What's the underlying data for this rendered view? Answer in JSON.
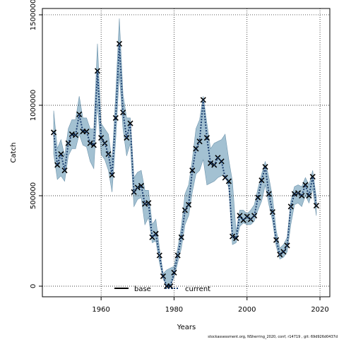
{
  "chart_data": {
    "type": "line",
    "x_label": "Years",
    "y_label": "Catch",
    "footer": "stockassessment.org, NSherring_2020, conf, r14719 , git: 69d926d0437d",
    "xlim": [
      1943.9,
      2022.7
    ],
    "ylim": [
      -58600,
      1535000
    ],
    "xticks": [
      1960,
      1980,
      2000,
      2020
    ],
    "yticks": [
      0,
      500000,
      1000000,
      1500000
    ],
    "grid": true,
    "x": [
      1947,
      1948,
      1949,
      1950,
      1951,
      1952,
      1953,
      1954,
      1955,
      1956,
      1957,
      1958,
      1959,
      1960,
      1961,
      1962,
      1963,
      1964,
      1965,
      1966,
      1967,
      1968,
      1969,
      1970,
      1971,
      1972,
      1973,
      1974,
      1975,
      1976,
      1977,
      1978,
      1979,
      1980,
      1981,
      1982,
      1983,
      1984,
      1985,
      1986,
      1987,
      1988,
      1989,
      1990,
      1991,
      1992,
      1993,
      1994,
      1995,
      1996,
      1997,
      1998,
      1999,
      2000,
      2001,
      2002,
      2003,
      2004,
      2005,
      2006,
      2007,
      2008,
      2009,
      2010,
      2011,
      2012,
      2013,
      2014,
      2015,
      2016,
      2017,
      2018,
      2019
    ],
    "band": {
      "color": "#a3c1d2",
      "upper": [
        970000,
        760000,
        810000,
        720000,
        870000,
        920000,
        920000,
        1050000,
        930000,
        930000,
        870000,
        870000,
        1340000,
        900000,
        870000,
        840000,
        690000,
        1060000,
        1480000,
        1060000,
        930000,
        930000,
        600000,
        630000,
        640000,
        530000,
        530000,
        340000,
        370000,
        210000,
        70000,
        90000,
        100000,
        110000,
        210000,
        330000,
        510000,
        560000,
        700000,
        870000,
        920000,
        1050000,
        900000,
        760000,
        790000,
        800000,
        810000,
        840000,
        700000,
        580000,
        300000,
        420000,
        420000,
        400000,
        420000,
        450000,
        540000,
        620000,
        690000,
        600000,
        490000,
        310000,
        210000,
        230000,
        270000,
        470000,
        550000,
        560000,
        550000,
        600000,
        560000,
        640000,
        490000
      ],
      "lower": [
        730000,
        590000,
        610000,
        580000,
        720000,
        760000,
        760000,
        840000,
        780000,
        770000,
        690000,
        650000,
        1010000,
        730000,
        700000,
        640000,
        520000,
        810000,
        1180000,
        870000,
        720000,
        790000,
        440000,
        480000,
        490000,
        340000,
        380000,
        240000,
        250000,
        130000,
        40000,
        0,
        0,
        50000,
        130000,
        210000,
        340000,
        390000,
        520000,
        620000,
        640000,
        700000,
        560000,
        570000,
        580000,
        600000,
        610000,
        620000,
        540000,
        230000,
        240000,
        330000,
        350000,
        340000,
        340000,
        360000,
        420000,
        470000,
        560000,
        450000,
        360000,
        220000,
        150000,
        160000,
        190000,
        340000,
        450000,
        460000,
        440000,
        500000,
        460000,
        540000,
        390000
      ]
    },
    "series": [
      {
        "name": "base",
        "color": "#000000",
        "marker": "x",
        "values": [
          850000,
          670000,
          730000,
          640000,
          790000,
          840000,
          835000,
          950000,
          855000,
          855000,
          790000,
          780000,
          1190000,
          820000,
          790000,
          730000,
          615000,
          930000,
          1340000,
          960000,
          820000,
          900000,
          520000,
          545000,
          555000,
          455000,
          460000,
          270000,
          290000,
          170000,
          55000,
          0,
          0,
          75000,
          170000,
          270000,
          420000,
          450000,
          640000,
          760000,
          800000,
          1030000,
          820000,
          680000,
          670000,
          710000,
          690000,
          600000,
          580000,
          275000,
          265000,
          390000,
          365000,
          385000,
          370000,
          390000,
          490000,
          585000,
          660000,
          510000,
          410000,
          255000,
          175000,
          190000,
          225000,
          440000,
          510000,
          515000,
          500000,
          560000,
          500000,
          605000,
          445000
        ]
      },
      {
        "name": "current",
        "color": "#1a3c6e",
        "dash": "2,2",
        "values": [
          850000,
          670000,
          730000,
          640000,
          790000,
          840000,
          835000,
          950000,
          855000,
          855000,
          790000,
          780000,
          1190000,
          820000,
          790000,
          730000,
          615000,
          930000,
          1340000,
          960000,
          820000,
          900000,
          520000,
          545000,
          555000,
          455000,
          460000,
          270000,
          290000,
          170000,
          55000,
          0,
          0,
          75000,
          170000,
          270000,
          420000,
          450000,
          640000,
          760000,
          800000,
          1030000,
          820000,
          680000,
          670000,
          710000,
          690000,
          600000,
          580000,
          275000,
          265000,
          390000,
          365000,
          385000,
          370000,
          390000,
          490000,
          585000,
          660000,
          510000,
          410000,
          255000,
          175000,
          190000,
          225000,
          440000,
          510000,
          515000,
          500000,
          560000,
          500000,
          605000,
          445000
        ]
      }
    ]
  }
}
